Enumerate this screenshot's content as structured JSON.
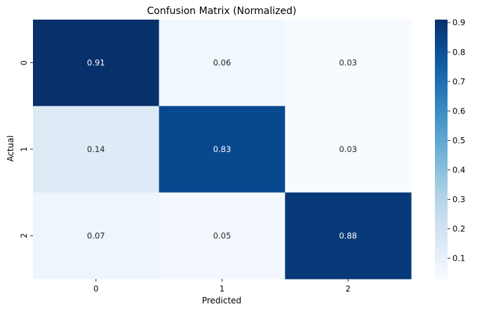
{
  "chart_data": {
    "type": "heatmap",
    "title": "Confusion Matrix (Normalized)",
    "xlabel": "Predicted",
    "ylabel": "Actual",
    "x_categories": [
      "0",
      "1",
      "2"
    ],
    "y_categories": [
      "0",
      "1",
      "2"
    ],
    "values": [
      [
        0.91,
        0.06,
        0.03
      ],
      [
        0.14,
        0.83,
        0.03
      ],
      [
        0.07,
        0.05,
        0.88
      ]
    ],
    "annotations": [
      [
        "0.91",
        "0.06",
        "0.03"
      ],
      [
        "0.14",
        "0.83",
        "0.03"
      ],
      [
        "0.07",
        "0.05",
        "0.88"
      ]
    ],
    "colormap": "Blues",
    "colorbar": {
      "min": 0.03,
      "max": 0.91,
      "ticks": [
        0.1,
        0.2,
        0.3,
        0.4,
        0.5,
        0.6,
        0.7,
        0.8,
        0.9
      ],
      "tick_labels": [
        "0.1",
        "0.2",
        "0.3",
        "0.4",
        "0.5",
        "0.6",
        "0.7",
        "0.8",
        "0.9"
      ]
    },
    "grid": false
  }
}
